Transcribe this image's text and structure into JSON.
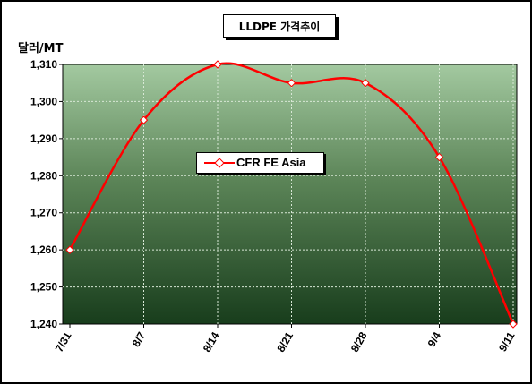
{
  "chart_data": {
    "type": "line",
    "title": "LLDPE 가격추이",
    "ylabel": "달러/MT",
    "xlabel": "",
    "categories": [
      "7/31",
      "8/7",
      "8/14",
      "8/21",
      "8/28",
      "9/4",
      "9/11"
    ],
    "series": [
      {
        "name": "CFR FE Asia",
        "values": [
          1260,
          1295,
          1310,
          1305,
          1305,
          1285,
          1240
        ],
        "color": "#ff0000",
        "marker": "diamond"
      }
    ],
    "ylim": [
      1240,
      1310
    ],
    "yticks": [
      "1,240",
      "1,250",
      "1,260",
      "1,270",
      "1,280",
      "1,290",
      "1,300",
      "1,310"
    ],
    "ytick_values": [
      1240,
      1250,
      1260,
      1270,
      1280,
      1290,
      1300,
      1310
    ],
    "grid": true,
    "legend_position": "center",
    "background_gradient": [
      "#a3c9a0",
      "#5b8457",
      "#183d1c"
    ]
  }
}
